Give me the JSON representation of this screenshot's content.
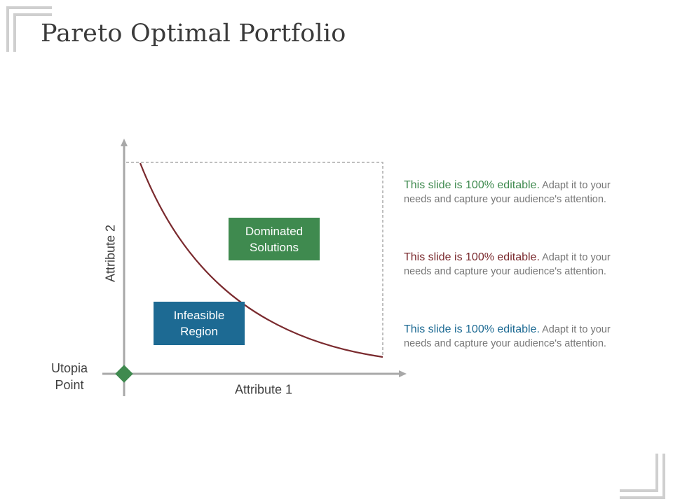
{
  "slide": {
    "title": "Pareto Optimal Portfolio"
  },
  "diagram": {
    "y_axis_label": "Attribute 2",
    "x_axis_label": "Attribute 1",
    "origin_label": "Utopia Point",
    "dominated_label": "Dominated Solutions",
    "infeasible_label": "Infeasible Region",
    "frontier_color": "#7a2a2e",
    "dominated_color": "#3f8a4f",
    "infeasible_color": "#1d6a93",
    "origin_marker_color": "#3f8a4f"
  },
  "notes": [
    {
      "lead": "This slide is 100% editable.",
      "body": "Adapt it to your needs and capture your audience's attention.",
      "color": "#3f8a4f"
    },
    {
      "lead": "This slide is 100% editable.",
      "body": "Adapt it to your needs and capture your audience's attention.",
      "color": "#7a2a2e"
    },
    {
      "lead": "This slide is 100% editable.",
      "body": "Adapt it to your needs and capture your audience's attention.",
      "color": "#1d6a93"
    }
  ]
}
